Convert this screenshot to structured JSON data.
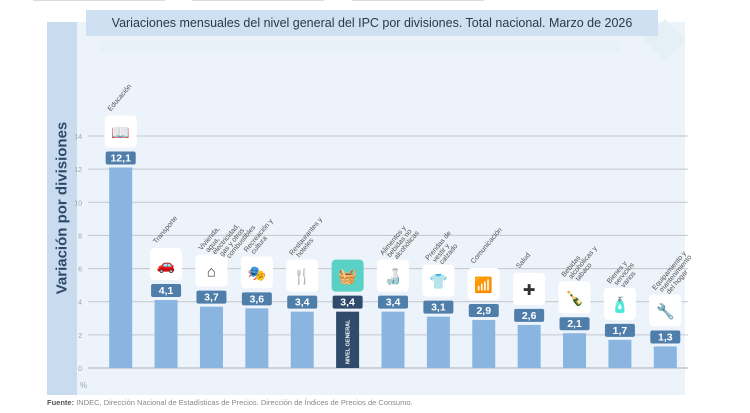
{
  "title": "Variaciones mensuales del nivel general del IPC por divisiones. Total nacional. Marzo de 2026",
  "y_axis_label": "Variación por divisiones",
  "unit_label": "%",
  "source_label": "Fuente:",
  "source_text": "INDEC, Dirección Nacional de Estadísticas de Precios. Dirección de Índices de Precios de Consumo.",
  "colors": {
    "bar": "#8ab5e0",
    "highlight_bar": "#2f4a6a",
    "value_badge": "#4f7eaa",
    "highlight_badge": "#2f4a6a",
    "highlight_icon_bg": "#5ad1c4",
    "grid": "#c2c7cc"
  },
  "chart_data": {
    "type": "bar",
    "title": "Variaciones mensuales del nivel general del IPC por divisiones. Total nacional. Marzo de 2026",
    "xlabel": "",
    "ylabel": "Variación por divisiones",
    "unit": "%",
    "ylim": [
      0,
      14
    ],
    "yticks": [
      0,
      2,
      4,
      6,
      8,
      10,
      12,
      14
    ],
    "grid": true,
    "categories": [
      {
        "label": "Educación",
        "value": 12.1,
        "display": "12,1",
        "icon": "book-icon"
      },
      {
        "label": "Transporte",
        "value": 4.1,
        "display": "4,1",
        "icon": "car-wrench-icon"
      },
      {
        "label": "Vivienda, agua, electricidad, gas y otros combustibles",
        "value": 3.7,
        "display": "3,7",
        "icon": "house-bolt-icon"
      },
      {
        "label": "Recreación y cultura",
        "value": 3.6,
        "display": "3,6",
        "icon": "theater-masks-icon"
      },
      {
        "label": "Restaurantes y hoteles",
        "value": 3.4,
        "display": "3,4",
        "icon": "fork-hotel-icon"
      },
      {
        "label": "NIVEL GENERAL",
        "value": 3.4,
        "display": "3,4",
        "icon": "shopping-basket-icon",
        "highlight": true
      },
      {
        "label": "Alimentos y bebidas no alcohólicas",
        "value": 3.4,
        "display": "3,4",
        "icon": "food-bottle-icon"
      },
      {
        "label": "Prendas de vestir y calzado",
        "value": 3.1,
        "display": "3,1",
        "icon": "tshirt-shoe-icon"
      },
      {
        "label": "Comunicación",
        "value": 2.9,
        "display": "2,9",
        "icon": "wifi-icon"
      },
      {
        "label": "Salud",
        "value": 2.6,
        "display": "2,6",
        "icon": "health-cross-icon"
      },
      {
        "label": "Bebidas alcohólicas y tabaco",
        "value": 2.1,
        "display": "2,1",
        "icon": "bottle-glass-icon"
      },
      {
        "label": "Bienes y servicios varios",
        "value": 1.7,
        "display": "1,7",
        "icon": "spray-comb-icon"
      },
      {
        "label": "Equipamiento y mantenimiento del hogar",
        "value": 1.3,
        "display": "1,3",
        "icon": "tools-icon"
      }
    ]
  }
}
